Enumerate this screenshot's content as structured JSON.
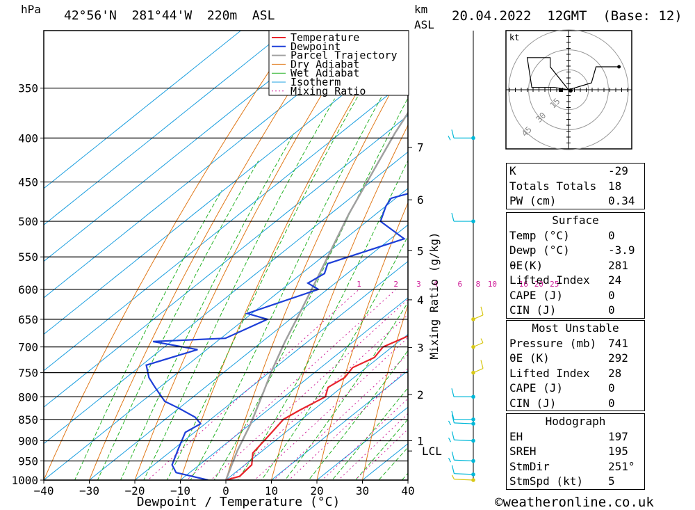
{
  "header": {
    "hpa_unit": "hPa",
    "location": "42°56'N  281°44'W  220m  ASL",
    "km_unit": "km",
    "asl_unit": "ASL",
    "datetime": "20.04.2022  12GMT  (Base: 12)"
  },
  "chart_data": {
    "type": "line",
    "xlabel": "Dewpoint / Temperature (°C)",
    "ylabel": "hPa",
    "right_axis_label": "Mixing Ratio (g/kg)",
    "xlim": [
      -40,
      40
    ],
    "ylim": [
      1000,
      300
    ],
    "x_ticks": [
      -40,
      -30,
      -20,
      -10,
      0,
      10,
      20,
      30,
      40
    ],
    "pressure_ticks": [
      350,
      400,
      450,
      500,
      550,
      600,
      650,
      700,
      750,
      800,
      850,
      900,
      950,
      1000
    ],
    "height_ticks_km": [
      {
        "km": "1",
        "p": 900
      },
      {
        "km": "2",
        "p": 795
      },
      {
        "km": "3",
        "p": 701
      },
      {
        "km": "4",
        "p": 617
      },
      {
        "km": "5",
        "p": 541
      },
      {
        "km": "6",
        "p": 472
      },
      {
        "km": "7",
        "p": 410
      }
    ],
    "lcl": {
      "label": "LCL",
      "p": 925
    },
    "mixing_ratio_labels": [
      "1",
      "2",
      "3",
      "4",
      "6",
      "8",
      "10",
      "16",
      "20",
      "25"
    ],
    "legend": [
      "Temperature",
      "Dewpoint",
      "Parcel Trajectory",
      "Dry Adiabat",
      "Wet Adiabat",
      "Isotherm",
      "Mixing Ratio"
    ],
    "colors": {
      "temperature": "#e8242b",
      "dewpoint": "#1d3fd8",
      "parcel": "#a0a0a0",
      "dry_adiabat": "#e07818",
      "wet_adiabat": "#28b428",
      "isotherm": "#1ea0e0",
      "mixing_ratio": "#d0209a",
      "wind_cold": "#00b8d8",
      "wind_warm": "#d8c818"
    },
    "series": [
      {
        "name": "Temperature",
        "points": [
          [
            0,
            1000
          ],
          [
            2,
            990
          ],
          [
            1.5,
            960
          ],
          [
            -1.5,
            930
          ],
          [
            -3,
            880
          ],
          [
            -4,
            850
          ],
          [
            -3,
            830
          ],
          [
            -1,
            800
          ],
          [
            -3,
            780
          ],
          [
            -2,
            760
          ],
          [
            -3,
            740
          ],
          [
            -1,
            720
          ],
          [
            -2,
            700
          ],
          [
            0.5,
            680
          ],
          [
            1,
            660
          ],
          [
            -0.5,
            640
          ],
          [
            -4,
            600
          ],
          [
            -5,
            580
          ],
          [
            -6,
            560
          ],
          [
            -10,
            520
          ],
          [
            -14,
            490
          ],
          [
            -18,
            460
          ],
          [
            -25,
            410
          ]
        ]
      },
      {
        "name": "Dewpoint",
        "points": [
          [
            -3.9,
            1000
          ],
          [
            -13,
            980
          ],
          [
            -16,
            960
          ],
          [
            -19,
            920
          ],
          [
            -22,
            880
          ],
          [
            -21,
            860
          ],
          [
            -24,
            845
          ],
          [
            -30,
            825
          ],
          [
            -35,
            810
          ],
          [
            -41,
            780
          ],
          [
            -45,
            760
          ],
          [
            -49,
            735
          ],
          [
            -42,
            705
          ],
          [
            -54,
            690
          ],
          [
            -39,
            684
          ],
          [
            -35,
            650
          ],
          [
            -41,
            640
          ],
          [
            -32,
            600
          ],
          [
            -36,
            590
          ],
          [
            -35,
            575
          ],
          [
            -37,
            560
          ],
          [
            -27,
            524
          ],
          [
            -37,
            500
          ],
          [
            -40,
            480
          ],
          [
            -41,
            470
          ],
          [
            -30,
            445
          ],
          [
            -34,
            400
          ]
        ]
      },
      {
        "name": "Parcel Trajectory",
        "points": [
          [
            0,
            1000
          ],
          [
            -5.5,
            925
          ],
          [
            -10,
            860
          ],
          [
            -15,
            800
          ],
          [
            -20,
            745
          ],
          [
            -25,
            690
          ],
          [
            -30,
            635
          ],
          [
            -35,
            585
          ],
          [
            -40,
            540
          ],
          [
            -46,
            490
          ],
          [
            -52,
            440
          ],
          [
            -58,
            395
          ],
          [
            -64,
            350
          ],
          [
            -70,
            310
          ]
        ]
      }
    ],
    "wind_barbs_kt": [
      {
        "p": 1000,
        "speed": 5
      },
      {
        "p": 985,
        "speed": 10
      },
      {
        "p": 950,
        "speed": 15
      },
      {
        "p": 900,
        "speed": 15
      },
      {
        "p": 860,
        "speed": 15
      },
      {
        "p": 850,
        "speed": 10
      },
      {
        "p": 800,
        "speed": 10
      },
      {
        "p": 750,
        "speed": 10
      },
      {
        "p": 700,
        "speed": 5
      },
      {
        "p": 650,
        "speed": 10
      },
      {
        "p": 500,
        "speed": 10
      },
      {
        "p": 400,
        "speed": 15
      }
    ],
    "hodograph": {
      "unit": "kt",
      "ring_labels": [
        "15",
        "30",
        "45"
      ],
      "trace_kt": [
        [
          0,
          0
        ],
        [
          -6,
          1
        ],
        [
          -16,
          1
        ],
        [
          -18,
          14
        ],
        [
          -8,
          14
        ],
        [
          -8,
          10
        ],
        [
          0,
          0
        ],
        [
          10,
          3
        ],
        [
          12,
          10
        ],
        [
          22,
          10
        ]
      ]
    }
  },
  "indices": [
    {
      "label": "K",
      "value": "-29"
    },
    {
      "label": "Totals Totals",
      "value": "18"
    },
    {
      "label": "PW (cm)",
      "value": "0.34"
    }
  ],
  "surface": {
    "title": "Surface",
    "rows": [
      {
        "label": "Temp (°C)",
        "value": "0"
      },
      {
        "label": "Dewp (°C)",
        "value": "-3.9"
      },
      {
        "label": "θE(K)",
        "value": "281"
      },
      {
        "label": "Lifted Index",
        "value": "24"
      },
      {
        "label": "CAPE (J)",
        "value": "0"
      },
      {
        "label": "CIN (J)",
        "value": "0"
      }
    ]
  },
  "most_unstable": {
    "title": "Most Unstable",
    "rows": [
      {
        "label": "Pressure (mb)",
        "value": "741"
      },
      {
        "label": "θE (K)",
        "value": "292"
      },
      {
        "label": "Lifted Index",
        "value": "28"
      },
      {
        "label": "CAPE (J)",
        "value": "0"
      },
      {
        "label": "CIN (J)",
        "value": "0"
      }
    ]
  },
  "hodograph_table": {
    "title": "Hodograph",
    "rows": [
      {
        "label": "EH",
        "value": "197"
      },
      {
        "label": "SREH",
        "value": "195"
      },
      {
        "label": "StmDir",
        "value": "251°"
      },
      {
        "label": "StmSpd (kt)",
        "value": "5"
      }
    ]
  },
  "footer": "©weatheronline.co.uk"
}
